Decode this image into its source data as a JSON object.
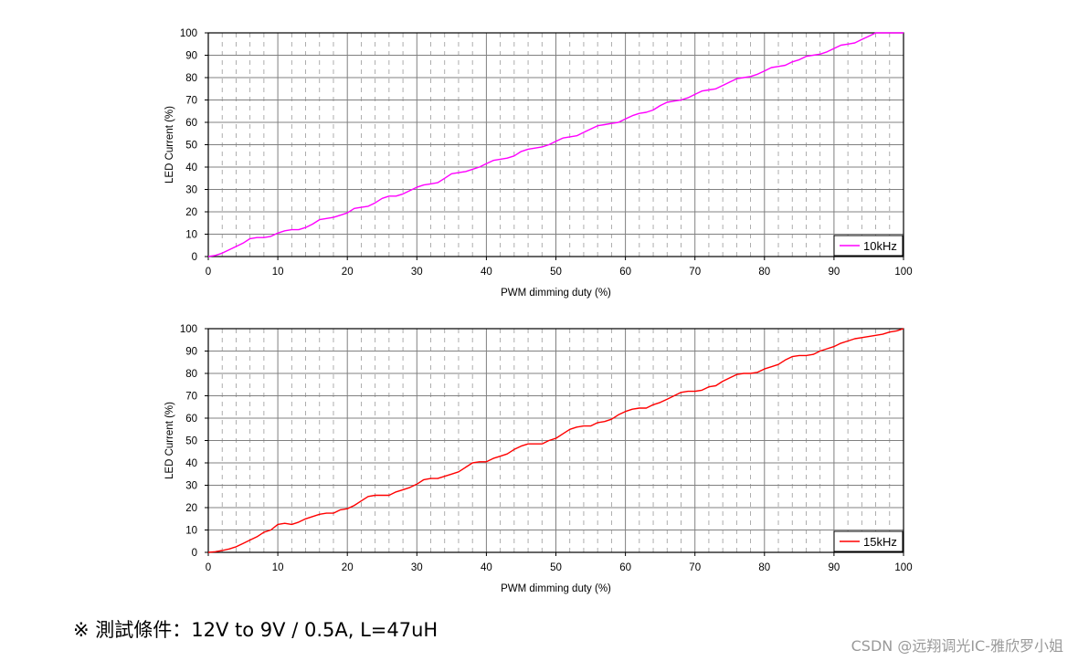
{
  "chart_data": [
    {
      "type": "line",
      "xlabel": "PWM dimming duty (%)",
      "ylabel": "LED Current (%)",
      "xlim": [
        0,
        100
      ],
      "ylim": [
        0,
        100
      ],
      "x_ticks": [
        "0",
        "10",
        "20",
        "30",
        "40",
        "50",
        "60",
        "70",
        "80",
        "90",
        "100"
      ],
      "y_ticks": [
        "0",
        "10",
        "20",
        "30",
        "40",
        "50",
        "60",
        "70",
        "80",
        "90",
        "100"
      ],
      "grid": true,
      "legend_position": "bottom-right",
      "series": [
        {
          "name": "10kHz",
          "color": "#ff00ff",
          "x": [
            0,
            1,
            2,
            3,
            4,
            5,
            6,
            7,
            8,
            9,
            10,
            11,
            12,
            13,
            14,
            15,
            16,
            17,
            18,
            19,
            20,
            21,
            22,
            23,
            24,
            25,
            26,
            27,
            28,
            29,
            30,
            31,
            32,
            33,
            34,
            35,
            36,
            37,
            38,
            39,
            40,
            41,
            42,
            43,
            44,
            45,
            46,
            47,
            48,
            49,
            50,
            51,
            52,
            53,
            54,
            55,
            56,
            57,
            58,
            59,
            60,
            61,
            62,
            63,
            64,
            65,
            66,
            67,
            68,
            69,
            70,
            71,
            72,
            73,
            74,
            75,
            76,
            77,
            78,
            79,
            80,
            81,
            82,
            83,
            84,
            85,
            86,
            87,
            88,
            89,
            90,
            91,
            92,
            93,
            94,
            95,
            96,
            97,
            98,
            99,
            100
          ],
          "values": [
            0,
            0.5,
            1.5,
            3,
            4.5,
            6,
            8,
            8.5,
            8.5,
            9,
            10.5,
            11.5,
            12,
            12,
            13,
            14.5,
            16.5,
            17,
            17.5,
            18.5,
            19.5,
            21.5,
            22,
            22.5,
            24,
            26,
            27,
            27,
            28,
            29.5,
            31,
            32,
            32.5,
            33,
            35,
            37,
            37.5,
            38,
            39,
            40,
            41.5,
            43,
            43.5,
            44,
            45,
            47,
            48,
            48.5,
            49,
            50,
            51.5,
            53,
            53.5,
            54,
            55.5,
            57,
            58.5,
            59,
            59.5,
            60,
            61.5,
            63,
            64,
            64.5,
            65.5,
            67.5,
            69,
            69.5,
            70,
            71,
            72.5,
            74,
            74.5,
            75,
            76.5,
            78,
            79.5,
            80,
            80.5,
            81.5,
            83,
            84.5,
            85,
            85.5,
            87,
            88,
            89.5,
            90,
            90.5,
            91.5,
            93,
            94.5,
            95,
            95.5,
            97,
            98.5,
            100,
            100,
            100,
            100,
            100
          ]
        }
      ]
    },
    {
      "type": "line",
      "xlabel": "PWM dimming duty (%)",
      "ylabel": "LED Current (%)",
      "xlim": [
        0,
        100
      ],
      "ylim": [
        0,
        100
      ],
      "x_ticks": [
        "0",
        "10",
        "20",
        "30",
        "40",
        "50",
        "60",
        "70",
        "80",
        "90",
        "100"
      ],
      "y_ticks": [
        "0",
        "10",
        "20",
        "30",
        "40",
        "50",
        "60",
        "70",
        "80",
        "90",
        "100"
      ],
      "grid": true,
      "legend_position": "bottom-right",
      "series": [
        {
          "name": "15kHz",
          "color": "#ff0000",
          "x": [
            0,
            1,
            2,
            3,
            4,
            5,
            6,
            7,
            8,
            9,
            10,
            11,
            12,
            13,
            14,
            15,
            16,
            17,
            18,
            19,
            20,
            21,
            22,
            23,
            24,
            25,
            26,
            27,
            28,
            29,
            30,
            31,
            32,
            33,
            34,
            35,
            36,
            37,
            38,
            39,
            40,
            41,
            42,
            43,
            44,
            45,
            46,
            47,
            48,
            49,
            50,
            51,
            52,
            53,
            54,
            55,
            56,
            57,
            58,
            59,
            60,
            61,
            62,
            63,
            64,
            65,
            66,
            67,
            68,
            69,
            70,
            71,
            72,
            73,
            74,
            75,
            76,
            77,
            78,
            79,
            80,
            81,
            82,
            83,
            84,
            85,
            86,
            87,
            88,
            89,
            90,
            91,
            92,
            93,
            94,
            95,
            96,
            97,
            98,
            99,
            100
          ],
          "values": [
            0,
            0.3,
            0.8,
            1.5,
            2.5,
            4,
            5.5,
            7,
            9,
            10,
            12.5,
            13,
            12.5,
            13.5,
            15,
            16,
            17,
            17.5,
            17.5,
            19,
            19.5,
            21,
            23,
            25,
            25.5,
            25.5,
            25.5,
            27,
            28,
            29,
            30.5,
            32.5,
            33,
            33,
            34,
            35,
            36,
            38,
            40,
            40.5,
            40.5,
            42,
            43,
            44,
            46,
            47.5,
            48.5,
            48.5,
            48.5,
            50,
            51,
            53,
            55,
            56,
            56.5,
            56.5,
            58,
            58.5,
            59.5,
            61.5,
            63,
            64,
            64.5,
            64.5,
            66,
            67,
            68.5,
            70,
            71.5,
            72,
            72,
            72.5,
            74,
            74.5,
            76.5,
            78,
            79.5,
            80,
            80,
            80.5,
            82,
            83,
            84,
            86,
            87.5,
            88,
            88,
            88.5,
            90,
            91,
            92,
            93.5,
            94.5,
            95.5,
            96,
            96.5,
            97,
            97.5,
            98.5,
            99,
            100
          ]
        }
      ]
    }
  ],
  "footnote": {
    "symbol": "※",
    "text": " 測試條件：12V to 9V / 0.5A, L=47uH"
  },
  "watermark": "CSDN @远翔调光IC-雅欣罗小姐"
}
